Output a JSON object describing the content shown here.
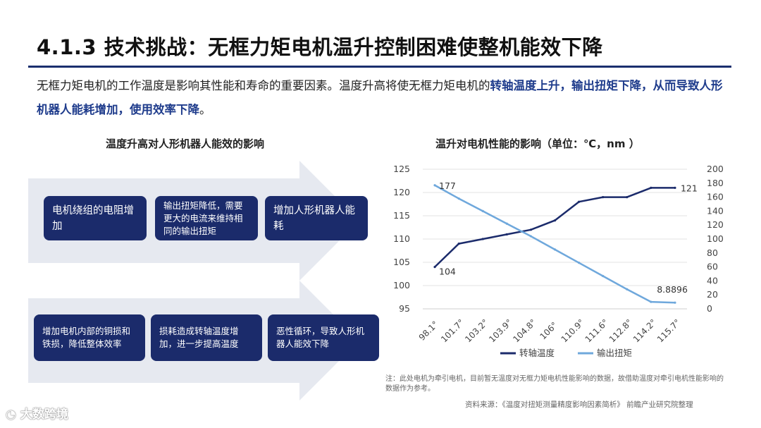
{
  "header": {
    "title": "4.1.3 技术挑战：无框力矩电机温升控制困难使整机能效下降"
  },
  "intro": {
    "lead": "无框力矩电机的工作温度是影响其性能和寿命的重要因素。温度升高将使无框力矩电机的",
    "highlight": "转轴温度上升，输出扭矩下降，从而导致人形机器人能耗增加，使用效率下降",
    "tail": "。"
  },
  "left_panel": {
    "title": "温度升高对人形机器人能效的影响",
    "row1": [
      "电机绕组的电阻增加",
      "输出扭矩降低，需要更大的电流来维持相同的输出扭矩",
      "增加人形机器人能耗"
    ],
    "row2": [
      "增加电机内部的铜损和铁损，降低整体效率",
      "损耗造成转轴温度增加，进一步提高温度",
      "恶性循环，导致人形机器人能效下降"
    ]
  },
  "right_panel": {
    "title": "温升对电机性能的影响（单位：℃，nm ）"
  },
  "chart_data": {
    "type": "line",
    "categories": [
      "98.1°",
      "101.7°",
      "103.2°",
      "103.9°",
      "104.8°",
      "106°",
      "110.9°",
      "111.6°",
      "112.8°",
      "114.2°",
      "115.7°"
    ],
    "series": [
      {
        "name": "转轴温度",
        "axis": "left",
        "color": "#1b2b6b",
        "values": [
          104,
          109,
          110,
          111,
          112,
          114,
          118,
          119,
          119,
          121,
          121
        ]
      },
      {
        "name": "输出扭矩",
        "axis": "right",
        "color": "#6fa8dc",
        "values": [
          177,
          158,
          140,
          122,
          104,
          85,
          66,
          47,
          28,
          10,
          8.8896
        ]
      }
    ],
    "annotations": [
      "177",
      "104",
      "121",
      "8.8896"
    ],
    "y_left": {
      "min": 95,
      "max": 125,
      "ticks": [
        "95",
        "100",
        "105",
        "110",
        "115",
        "120",
        "125"
      ]
    },
    "y_right": {
      "min": 0,
      "max": 200,
      "ticks": [
        "0",
        "20",
        "40",
        "60",
        "80",
        "100",
        "120",
        "140",
        "160",
        "180",
        "200"
      ]
    },
    "grid": true,
    "legend": "bottom"
  },
  "footer": {
    "note": "注：此处电机为牵引电机，目前暂无温度对无框力矩电机性能影响的数据，故借助温度对牵引电机性能影响的数据作为参考。",
    "source": "资料来源：《温度对扭矩测量精度影响因素简析》 前瞻产业研究院整理",
    "logo_text": "大数跨境"
  },
  "colors": {
    "primary": "#1b2b6b",
    "accent": "#6fa8dc",
    "arrow": "#e6e9f0"
  }
}
